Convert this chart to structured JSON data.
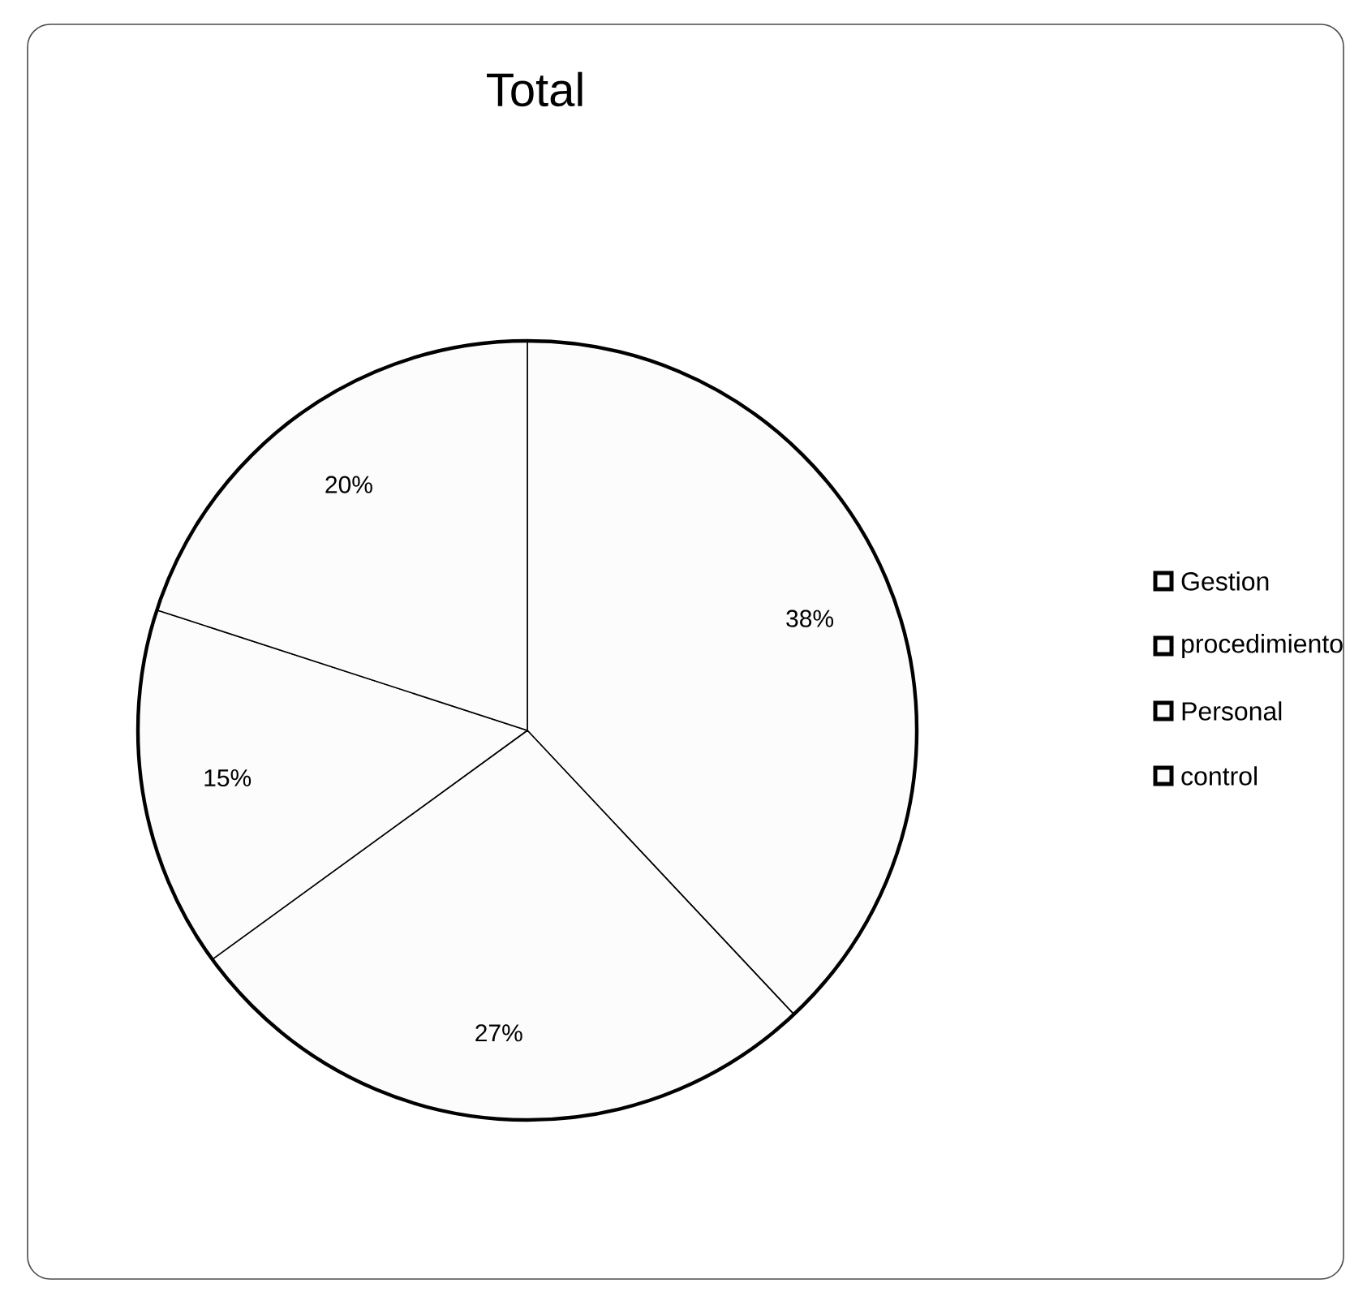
{
  "chart_data": {
    "type": "pie",
    "title": "Total",
    "categories": [
      "Gestion",
      "procedimiento",
      "Personal",
      "control"
    ],
    "values": [
      38,
      27,
      15,
      20
    ],
    "colors": [
      "#fcfcfc",
      "#fcfcfc",
      "#fcfcfc",
      "#fcfcfc"
    ],
    "value_labels": [
      "38%",
      "27%",
      "15%",
      "20%"
    ],
    "legend": "right"
  }
}
